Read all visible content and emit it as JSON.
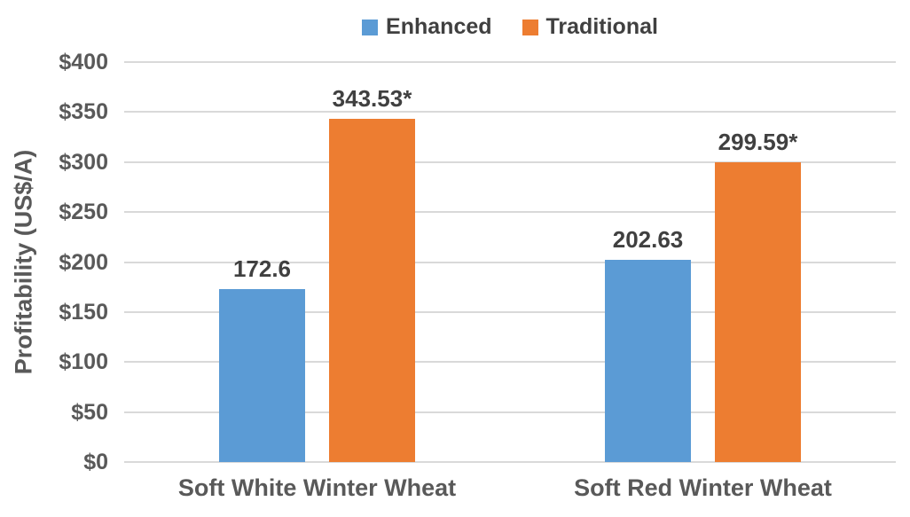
{
  "chart_data": {
    "type": "bar",
    "title": "",
    "categories": [
      "Soft White Winter Wheat",
      "Soft Red Winter Wheat"
    ],
    "series": [
      {
        "name": "Enhanced",
        "color": "#5B9BD5",
        "values": [
          172.6,
          202.63
        ],
        "data_labels": [
          "172.6",
          "202.63"
        ]
      },
      {
        "name": "Traditional",
        "color": "#ED7D31",
        "values": [
          343.53,
          299.59
        ],
        "data_labels": [
          "343.53*",
          "299.59*"
        ]
      }
    ],
    "xlabel": "",
    "ylabel": "Profitability (US$/A)",
    "ylim": [
      0,
      400
    ],
    "ytick_step": 50,
    "ytick_labels": [
      "$0",
      "$50",
      "$100",
      "$150",
      "$200",
      "$250",
      "$300",
      "$350",
      "$400"
    ],
    "grid": true,
    "gridline_color": "#d9d9d9",
    "legend_position": "top-center"
  }
}
